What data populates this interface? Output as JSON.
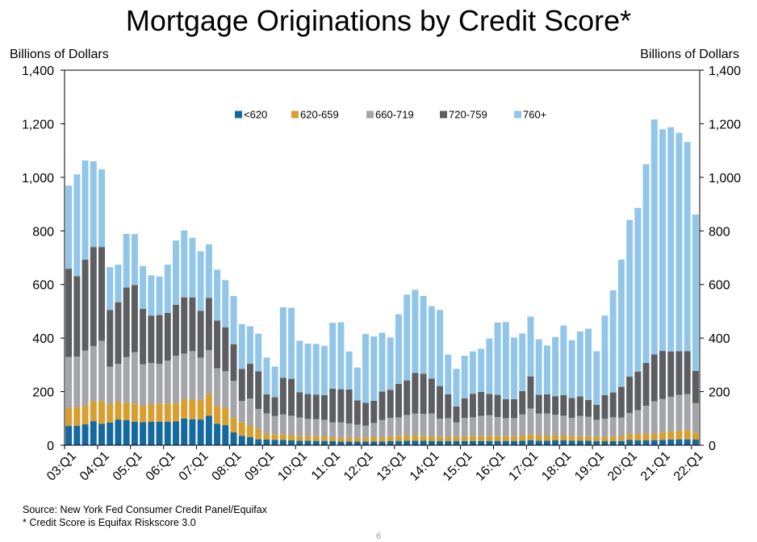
{
  "header": {
    "title": "Mortgage Originations by Credit Score*",
    "unit_left": "Billions of Dollars",
    "unit_right": "Billions of Dollars"
  },
  "footer": {
    "source": "Source: New York Fed Consumer Credit Panel/Equifax",
    "note": "* Credit Score is Equifax Riskscore 3.0",
    "page_number": "6"
  },
  "chart_data": {
    "type": "bar",
    "stacked": true,
    "title": "Mortgage Originations by Credit Score*",
    "ylabel": "Billions of Dollars",
    "ylim": [
      0,
      1400
    ],
    "yticks": [
      0,
      200,
      400,
      600,
      800,
      1000,
      1200,
      1400
    ],
    "ytick_labels": [
      "0",
      "200",
      "400",
      "600",
      "800",
      "1,000",
      "1,200",
      "1,400"
    ],
    "grid": false,
    "legend_position": "top-center",
    "x_tick_labels": [
      "03:Q1",
      "04:Q1",
      "05:Q1",
      "06:Q1",
      "07:Q1",
      "08:Q1",
      "09:Q1",
      "10:Q1",
      "11:Q1",
      "12:Q1",
      "13:Q1",
      "14:Q1",
      "15:Q1",
      "16:Q1",
      "17:Q1",
      "18:Q1",
      "19:Q1",
      "20:Q1",
      "21:Q1",
      "22:Q1"
    ],
    "categories": [
      "03:Q1",
      "03:Q2",
      "03:Q3",
      "03:Q4",
      "04:Q1",
      "04:Q2",
      "04:Q3",
      "04:Q4",
      "05:Q1",
      "05:Q2",
      "05:Q3",
      "05:Q4",
      "06:Q1",
      "06:Q2",
      "06:Q3",
      "06:Q4",
      "07:Q1",
      "07:Q2",
      "07:Q3",
      "07:Q4",
      "08:Q1",
      "08:Q2",
      "08:Q3",
      "08:Q4",
      "09:Q1",
      "09:Q2",
      "09:Q3",
      "09:Q4",
      "10:Q1",
      "10:Q2",
      "10:Q3",
      "10:Q4",
      "11:Q1",
      "11:Q2",
      "11:Q3",
      "11:Q4",
      "12:Q1",
      "12:Q2",
      "12:Q3",
      "12:Q4",
      "13:Q1",
      "13:Q2",
      "13:Q3",
      "13:Q4",
      "14:Q1",
      "14:Q2",
      "14:Q3",
      "14:Q4",
      "15:Q1",
      "15:Q2",
      "15:Q3",
      "15:Q4",
      "16:Q1",
      "16:Q2",
      "16:Q3",
      "16:Q4",
      "17:Q1",
      "17:Q2",
      "17:Q3",
      "17:Q4",
      "18:Q1",
      "18:Q2",
      "18:Q3",
      "18:Q4",
      "19:Q1",
      "19:Q2",
      "19:Q3",
      "19:Q4",
      "20:Q1",
      "20:Q2",
      "20:Q3",
      "20:Q4",
      "21:Q1",
      "21:Q2",
      "21:Q3",
      "21:Q4",
      "22:Q1"
    ],
    "series": [
      {
        "name": "<620",
        "color": "#1469a1",
        "values": [
          72,
          73,
          78,
          90,
          80,
          85,
          96,
          94,
          88,
          86,
          88,
          88,
          88,
          89,
          100,
          97,
          96,
          110,
          80,
          75,
          48,
          35,
          30,
          22,
          21,
          20,
          20,
          18,
          17,
          17,
          16,
          16,
          15,
          14,
          14,
          14,
          14,
          14,
          14,
          15,
          16,
          17,
          17,
          17,
          16,
          15,
          15,
          15,
          16,
          16,
          16,
          16,
          16,
          16,
          16,
          17,
          19,
          17,
          17,
          18,
          18,
          17,
          17,
          17,
          15,
          15,
          15,
          16,
          20,
          18,
          18,
          19,
          20,
          21,
          22,
          22,
          21
        ]
      },
      {
        "name": "620-659",
        "color": "#d89f2f",
        "values": [
          67,
          68,
          70,
          75,
          85,
          68,
          65,
          65,
          68,
          62,
          64,
          68,
          68,
          67,
          72,
          73,
          73,
          82,
          67,
          65,
          54,
          50,
          44,
          38,
          21,
          20,
          20,
          19,
          18,
          18,
          18,
          17,
          15,
          14,
          14,
          14,
          14,
          16,
          16,
          17,
          18,
          19,
          19,
          18,
          17,
          16,
          15,
          15,
          16,
          18,
          18,
          19,
          18,
          18,
          18,
          19,
          21,
          19,
          19,
          19,
          18,
          18,
          17,
          17,
          17,
          17,
          17,
          17,
          22,
          25,
          24,
          25,
          28,
          30,
          31,
          34,
          26
        ]
      },
      {
        "name": "660-719",
        "color": "#a3a5a8",
        "values": [
          190,
          190,
          205,
          205,
          225,
          140,
          143,
          170,
          191,
          154,
          155,
          148,
          160,
          178,
          170,
          181,
          158,
          163,
          140,
          136,
          138,
          80,
          100,
          75,
          77,
          69,
          75,
          73,
          68,
          63,
          63,
          62,
          55,
          57,
          53,
          49,
          45,
          53,
          64,
          70,
          70,
          77,
          82,
          82,
          85,
          68,
          71,
          55,
          70,
          70,
          75,
          77,
          71,
          67,
          67,
          79,
          97,
          82,
          82,
          77,
          74,
          67,
          75,
          72,
          63,
          67,
          72,
          70,
          78,
          88,
          105,
          120,
          125,
          130,
          135,
          135,
          110
        ]
      },
      {
        "name": "720-759",
        "color": "#5c5e61",
        "values": [
          330,
          300,
          340,
          370,
          350,
          212,
          230,
          260,
          251,
          207,
          177,
          182,
          178,
          190,
          210,
          201,
          175,
          195,
          178,
          164,
          137,
          120,
          130,
          141,
          71,
          70,
          137,
          138,
          95,
          93,
          92,
          92,
          126,
          124,
          127,
          90,
          85,
          83,
          106,
          105,
          125,
          129,
          152,
          150,
          131,
          122,
          89,
          60,
          73,
          88,
          90,
          79,
          83,
          71,
          71,
          87,
          120,
          70,
          72,
          69,
          77,
          74,
          73,
          63,
          56,
          88,
          93,
          115,
          136,
          144,
          160,
          175,
          179,
          169,
          163,
          160,
          120
        ]
      },
      {
        "name": "760+",
        "color": "#91c6e8",
        "values": [
          310,
          380,
          370,
          320,
          290,
          160,
          140,
          200,
          190,
          160,
          150,
          144,
          180,
          240,
          250,
          222,
          222,
          200,
          190,
          176,
          180,
          167,
          140,
          140,
          137,
          115,
          263,
          265,
          192,
          188,
          189,
          184,
          246,
          250,
          142,
          123,
          257,
          240,
          220,
          195,
          260,
          320,
          310,
          290,
          270,
          284,
          148,
          140,
          159,
          158,
          161,
          207,
          270,
          288,
          230,
          215,
          223,
          208,
          182,
          221,
          260,
          216,
          243,
          266,
          200,
          297,
          381,
          475,
          585,
          611,
          742,
          877,
          827,
          837,
          815,
          781,
          584
        ]
      }
    ]
  }
}
